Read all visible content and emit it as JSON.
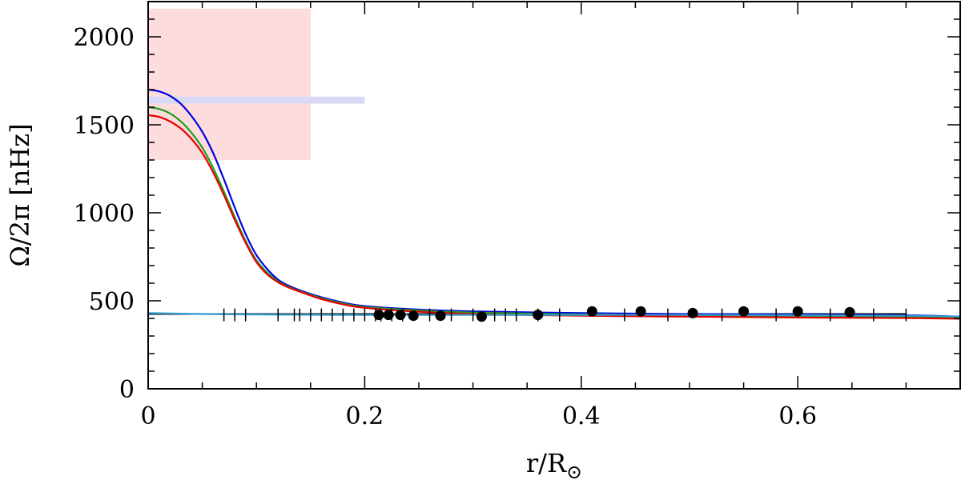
{
  "chart_data": {
    "type": "line",
    "title": "",
    "xlabel": {
      "base": "r/R",
      "subscript": "⊙"
    },
    "ylabel": "Ω/2π  [nHz]",
    "xlim": [
      0,
      0.75
    ],
    "ylim": [
      0,
      2200
    ],
    "x_ticks": [
      0,
      0.2,
      0.4,
      0.6
    ],
    "x_tick_labels": [
      "0",
      "0.2",
      "0.4",
      "0.6"
    ],
    "y_ticks": [
      0,
      500,
      1000,
      1500,
      2000
    ],
    "y_tick_labels": [
      "0",
      "500",
      "1000",
      "1500",
      "2000"
    ],
    "grid": false,
    "legend": "none",
    "regions": [
      {
        "x": [
          0,
          0.15
        ],
        "y": [
          1300,
          2160
        ],
        "color": "#fcdcdc"
      },
      {
        "x": [
          0,
          0.2
        ],
        "y": [
          1620,
          1660
        ],
        "color": "#d9d9f7"
      }
    ],
    "series": [
      {
        "color": "#0000e6",
        "x": [
          0,
          0.01,
          0.02,
          0.03,
          0.04,
          0.05,
          0.06,
          0.07,
          0.08,
          0.09,
          0.1,
          0.11,
          0.12,
          0.13,
          0.14,
          0.16,
          0.18,
          0.2,
          0.25,
          0.3,
          0.4,
          0.5,
          0.6,
          0.7,
          0.75
        ],
        "y": [
          1700,
          1690,
          1665,
          1620,
          1550,
          1460,
          1340,
          1190,
          1030,
          880,
          760,
          680,
          620,
          585,
          560,
          520,
          490,
          470,
          450,
          440,
          430,
          425,
          422,
          418,
          410
        ]
      },
      {
        "color": "#1e9e1e",
        "x": [
          0,
          0.01,
          0.02,
          0.03,
          0.04,
          0.05,
          0.06,
          0.07,
          0.08,
          0.09,
          0.1,
          0.11,
          0.12,
          0.13,
          0.14,
          0.16,
          0.18,
          0.2,
          0.25,
          0.3,
          0.4,
          0.5,
          0.6,
          0.7,
          0.75
        ],
        "y": [
          1600,
          1590,
          1565,
          1520,
          1455,
          1370,
          1255,
          1120,
          975,
          840,
          730,
          660,
          610,
          578,
          555,
          515,
          485,
          465,
          445,
          433,
          423,
          418,
          414,
          410,
          405
        ]
      },
      {
        "color": "#e60000",
        "x": [
          0,
          0.01,
          0.02,
          0.03,
          0.04,
          0.05,
          0.06,
          0.07,
          0.08,
          0.09,
          0.1,
          0.11,
          0.12,
          0.13,
          0.14,
          0.16,
          0.18,
          0.2,
          0.25,
          0.3,
          0.4,
          0.5,
          0.6,
          0.7,
          0.75
        ],
        "y": [
          1555,
          1545,
          1520,
          1480,
          1420,
          1340,
          1230,
          1100,
          960,
          830,
          720,
          650,
          605,
          575,
          552,
          510,
          480,
          460,
          438,
          425,
          415,
          410,
          405,
          402,
          398
        ]
      },
      {
        "color": "#3399cc",
        "x": [
          0,
          0.05,
          0.1,
          0.2,
          0.3,
          0.4,
          0.5,
          0.6,
          0.7,
          0.75
        ],
        "y": [
          430,
          425,
          422,
          420,
          420,
          420,
          420,
          418,
          415,
          410
        ]
      }
    ],
    "reference_line": {
      "x": [
        0,
        0.7
      ],
      "y": 425,
      "color": "#000000"
    },
    "tick_marks_x": [
      0.07,
      0.08,
      0.09,
      0.12,
      0.135,
      0.14,
      0.15,
      0.16,
      0.17,
      0.18,
      0.19,
      0.2,
      0.21,
      0.215,
      0.225,
      0.235,
      0.26,
      0.28,
      0.3,
      0.32,
      0.33,
      0.34,
      0.36,
      0.38,
      0.44,
      0.48,
      0.53,
      0.58,
      0.63,
      0.67,
      0.7
    ],
    "tick_marks_y": 420,
    "points": {
      "x": [
        0.213,
        0.222,
        0.233,
        0.245,
        0.27,
        0.308,
        0.36,
        0.41,
        0.455,
        0.503,
        0.55,
        0.6,
        0.648
      ],
      "y": [
        420,
        420,
        420,
        415,
        415,
        410,
        420,
        440,
        440,
        430,
        440,
        440,
        435
      ]
    }
  }
}
